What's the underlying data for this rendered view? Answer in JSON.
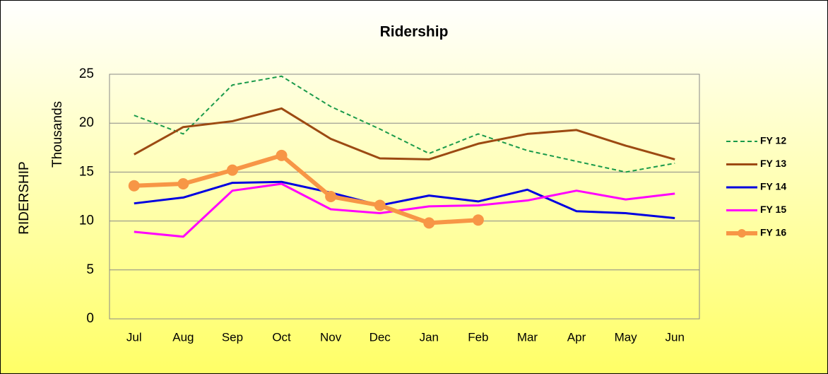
{
  "chart_data": {
    "type": "line",
    "title": "Ridership",
    "y_label": "RIDERSHIP",
    "y_unit_label": "Thousands",
    "categories": [
      "Jul",
      "Aug",
      "Sep",
      "Oct",
      "Nov",
      "Dec",
      "Jan",
      "Feb",
      "Mar",
      "Apr",
      "May",
      "Jun"
    ],
    "ylim": [
      0,
      25
    ],
    "yticks": [
      0,
      5,
      10,
      15,
      20,
      25
    ],
    "grid": true,
    "legend": "right",
    "series": [
      {
        "name": "FY 12",
        "color": "#1a9a4a",
        "dashed": true,
        "values": [
          20.8,
          18.9,
          23.9,
          24.8,
          21.7,
          19.4,
          16.9,
          18.9,
          17.2,
          16.1,
          15.0,
          15.9
        ]
      },
      {
        "name": "FY 13",
        "color": "#9c4a12",
        "values": [
          16.8,
          19.6,
          20.2,
          21.5,
          18.4,
          16.4,
          16.3,
          17.9,
          18.9,
          19.3,
          17.7,
          16.3
        ]
      },
      {
        "name": "FY 14",
        "color": "#0000e0",
        "values": [
          11.8,
          12.4,
          13.9,
          14.0,
          12.9,
          11.6,
          12.6,
          12.0,
          13.2,
          11.0,
          10.8,
          10.3
        ]
      },
      {
        "name": "FY 15",
        "color": "#ff00ff",
        "values": [
          8.9,
          8.4,
          13.1,
          13.8,
          11.2,
          10.8,
          11.5,
          11.6,
          12.1,
          13.1,
          12.2,
          12.8
        ]
      },
      {
        "name": "FY 16",
        "color": "#f79646",
        "marker": true,
        "values": [
          13.6,
          13.8,
          15.2,
          16.7,
          12.5,
          11.6,
          9.8,
          10.1,
          null,
          null,
          null,
          null
        ]
      }
    ]
  }
}
